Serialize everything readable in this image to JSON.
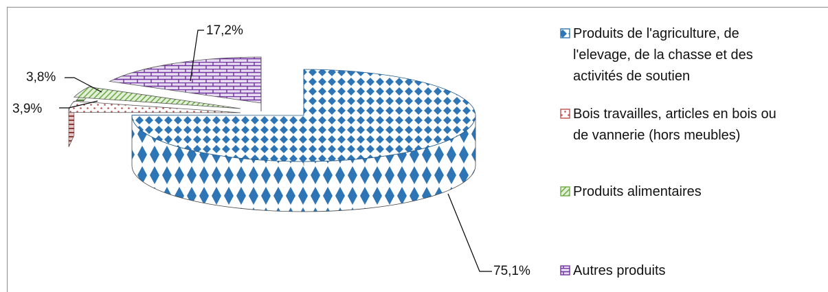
{
  "chart_data": {
    "type": "pie",
    "style": "3d-exploded",
    "title": "",
    "legend_position": "right",
    "series": [
      {
        "name": "",
        "slices": [
          {
            "label": "Produits de l'agriculture, de l'elevage, de la chasse et des activités de soutien",
            "legend_lines": [
              "Produits de l'agriculture, de",
              "l'elevage, de la chasse et des",
              "activités de soutien"
            ],
            "value": 75.1,
            "display": "75,1%",
            "color": "#2e75b6",
            "pattern": "diamond"
          },
          {
            "label": "Bois travailles, articles en bois ou de vannerie (hors meubles)",
            "legend_lines": [
              "Bois travailles, articles en bois ou",
              "de vannerie (hors meubles)"
            ],
            "value": 3.9,
            "display": "3,9%",
            "color": "#c0504d",
            "pattern": "dots"
          },
          {
            "label": "Produits alimentaires",
            "legend_lines": [
              "Produits alimentaires"
            ],
            "value": 3.8,
            "display": "3,8%",
            "color": "#70ad47",
            "pattern": "diagonal"
          },
          {
            "label": "Autres produits",
            "legend_lines": [
              "Autres produits"
            ],
            "value": 17.2,
            "display": "17,2%",
            "color": "#7030a0",
            "pattern": "brick"
          }
        ]
      }
    ]
  }
}
